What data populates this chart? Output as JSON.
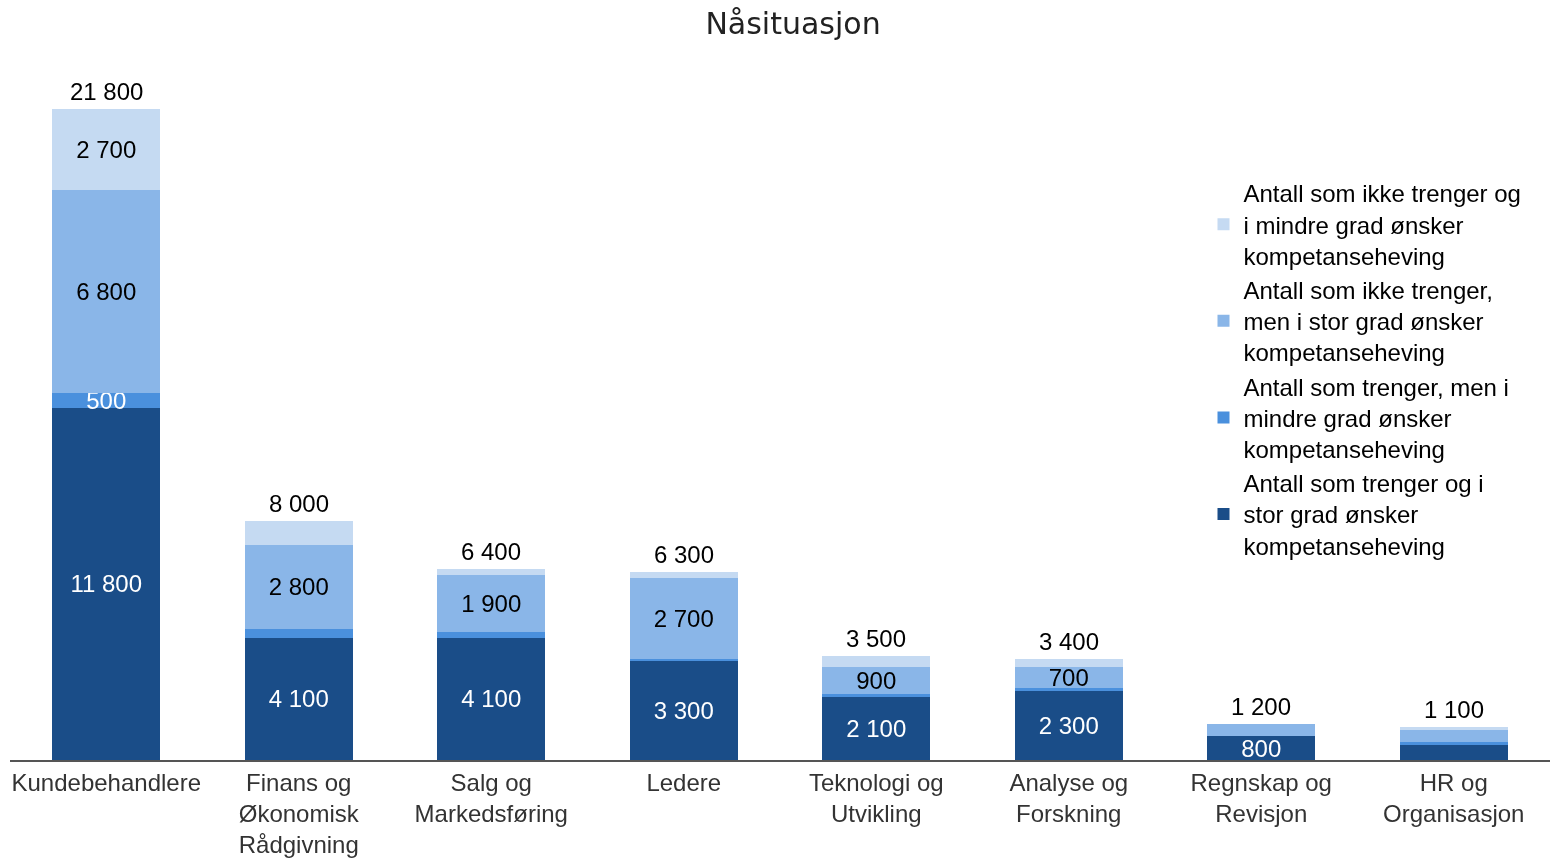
{
  "chart_data": {
    "type": "bar",
    "title": "Nåsituasjon",
    "stacked": true,
    "legend": "right",
    "categories": [
      "Kundebehandlere",
      "Finans og Økonomisk Rådgivning",
      "Salg og Markedsføring",
      "Ledere",
      "Teknologi og Utvikling",
      "Analyse og Forskning",
      "Regnskap og Revisjon",
      "HR og Organisasjon"
    ],
    "series": [
      {
        "name": "Antall som trenger og i stor grad ønsker kompetanseheving",
        "color": "#1a4d88",
        "values": [
          11800,
          4100,
          4100,
          3300,
          2100,
          2300,
          800,
          500
        ],
        "value_labels": [
          "11 800",
          "4 100",
          "4 100",
          "3 300",
          "2 100",
          "2 300",
          "800",
          null
        ]
      },
      {
        "name": "Antall som trenger, men i mindre grad ønsker kompetanseheving",
        "color": "#4a90dd",
        "values": [
          500,
          300,
          200,
          100,
          100,
          100,
          0,
          100
        ],
        "value_labels": [
          "500",
          null,
          null,
          null,
          null,
          null,
          null,
          null
        ]
      },
      {
        "name": "Antall som ikke trenger, men i stor grad ønsker kompetanseheving",
        "color": "#8ab6e8",
        "values": [
          6800,
          2800,
          1900,
          2700,
          900,
          700,
          400,
          400
        ],
        "value_labels": [
          "6 800",
          "2 800",
          "1 900",
          "2 700",
          "900",
          "700",
          null,
          null
        ]
      },
      {
        "name": "Antall som ikke trenger og i mindre grad ønsker kompetanseheving",
        "color": "#c5daf2",
        "values": [
          2700,
          800,
          200,
          200,
          400,
          300,
          0,
          100
        ],
        "value_labels": [
          "2 700",
          null,
          null,
          null,
          null,
          null,
          null,
          null
        ]
      }
    ],
    "totals": [
      "21 800",
      "8 000",
      "6 400",
      "6 300",
      "3 500",
      "3 400",
      "1 200",
      "1 100"
    ]
  }
}
